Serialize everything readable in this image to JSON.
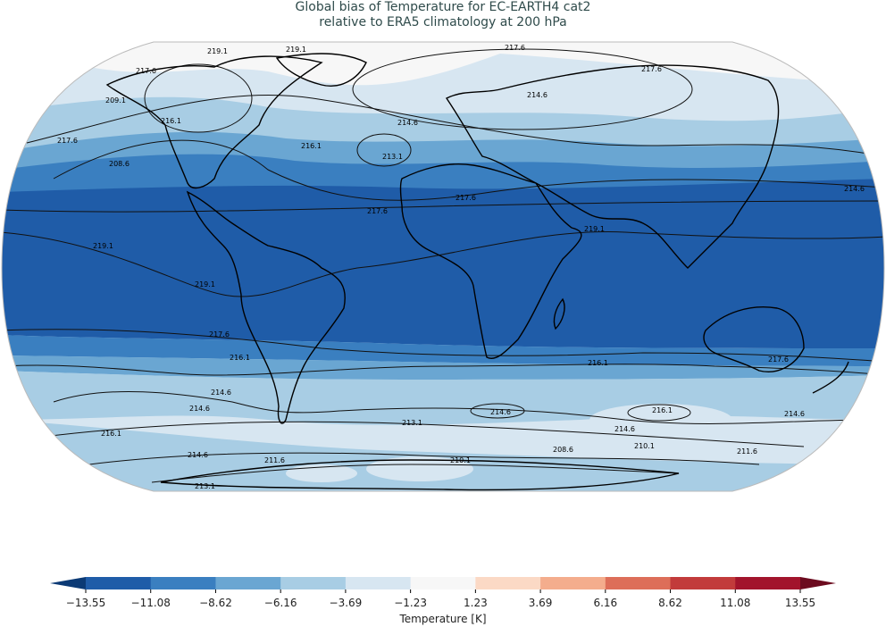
{
  "title": {
    "line1": "Global bias of Temperature for EC-EARTH4 cat2",
    "line2": "relative to ERA5 climatology at 200 hPa"
  },
  "colorbar": {
    "label": "Temperature [K]",
    "ticks": [
      "−13.55",
      "−11.08",
      "−8.62",
      "−6.16",
      "−3.69",
      "−1.23",
      "1.23",
      "3.69",
      "6.16",
      "8.62",
      "11.08",
      "13.55"
    ],
    "colors": [
      "#0b3a75",
      "#1f5ca8",
      "#3a7fc0",
      "#6aa6d2",
      "#a8cde4",
      "#d7e6f1",
      "#f7f7f7",
      "#fbd9c5",
      "#f4ad8d",
      "#dd6e59",
      "#c23b3b",
      "#a2142c",
      "#6c0b1f"
    ]
  },
  "map": {
    "projection": "robinson",
    "contour_labels": [
      "219.1",
      "217.6",
      "217.6",
      "214.6",
      "216.1",
      "214.6",
      "213.1",
      "216.1",
      "217.6",
      "217.6",
      "219.1",
      "219.1",
      "219.1",
      "217.6",
      "216.1",
      "214.6",
      "214.6",
      "216.1",
      "217.6",
      "216.1",
      "214.6",
      "213.1",
      "214.6",
      "214.6",
      "216.1",
      "214.6",
      "211.6",
      "210.1",
      "208.6",
      "210.1",
      "211.6",
      "213.1",
      "209.1",
      "208.6",
      "217.6",
      "214.6",
      "217.6",
      "219.1"
    ]
  }
}
